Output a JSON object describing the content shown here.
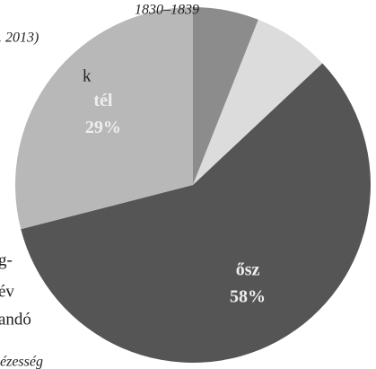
{
  "chart_data": {
    "type": "pie",
    "categories": [
      null,
      null,
      "ősz",
      "tél"
    ],
    "values": [
      6,
      7,
      58,
      29
    ],
    "value_labels": [
      null,
      null,
      "58%",
      "29%"
    ],
    "colors": [
      "#8c8c8c",
      "#dcdcdc",
      "#555555",
      "#b8b8b8"
    ]
  },
  "page_text": [
    "1830–1839",
    ". 2013)",
    "k",
    "g-",
    "év",
    "andó",
    "ézesség"
  ]
}
